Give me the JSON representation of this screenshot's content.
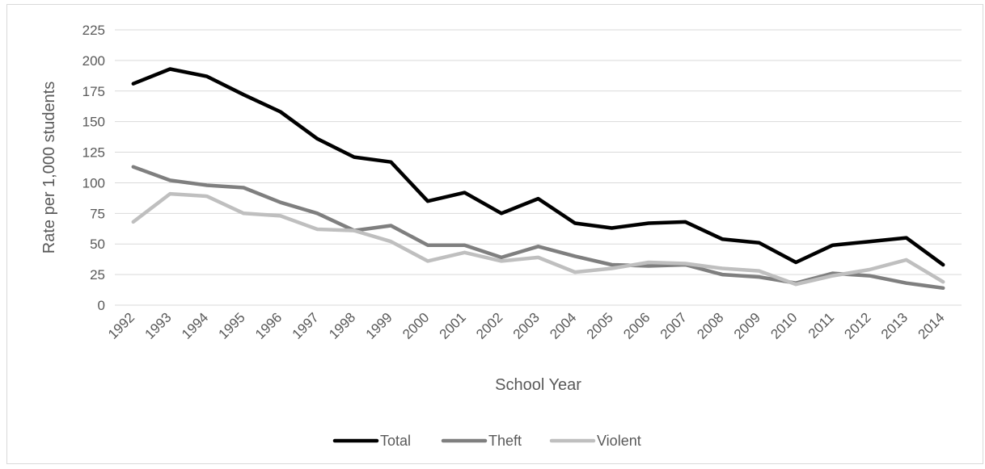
{
  "chart_data": {
    "type": "line",
    "title": "",
    "xlabel": "School Year",
    "ylabel": "Rate per 1,000 students",
    "ylim": [
      0,
      225
    ],
    "yticks": [
      0,
      25,
      50,
      75,
      100,
      125,
      150,
      175,
      200,
      225
    ],
    "grid": "horizontal",
    "legend": "bottom",
    "categories": [
      "1992",
      "1993",
      "1994",
      "1995",
      "1996",
      "1997",
      "1998",
      "1999",
      "2000",
      "2001",
      "2002",
      "2003",
      "2004",
      "2005",
      "2006",
      "2007",
      "2008",
      "2009",
      "2010",
      "2011",
      "2012",
      "2013",
      "2014"
    ],
    "series": [
      {
        "name": "Total",
        "color": "#000000",
        "values": [
          181,
          193,
          187,
          172,
          158,
          136,
          121,
          117,
          85,
          92,
          75,
          87,
          67,
          63,
          67,
          68,
          54,
          51,
          35,
          49,
          52,
          55,
          33
        ]
      },
      {
        "name": "Theft",
        "color": "#7f7f7f",
        "values": [
          113,
          102,
          98,
          96,
          84,
          75,
          61,
          65,
          49,
          49,
          39,
          48,
          40,
          33,
          32,
          33,
          25,
          23,
          18,
          26,
          24,
          18,
          14
        ]
      },
      {
        "name": "Violent",
        "color": "#bfbfbf",
        "values": [
          68,
          91,
          89,
          75,
          73,
          62,
          61,
          52,
          36,
          43,
          36,
          39,
          27,
          30,
          35,
          34,
          30,
          28,
          17,
          24,
          29,
          37,
          19
        ]
      }
    ]
  }
}
